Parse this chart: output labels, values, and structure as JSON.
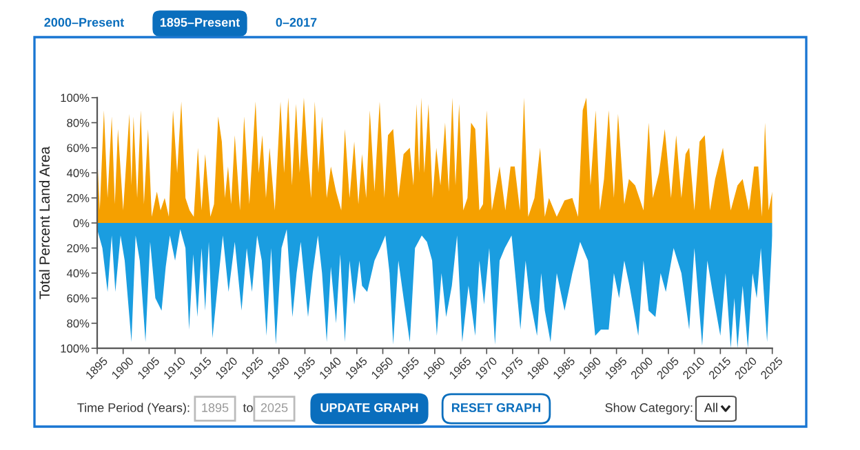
{
  "chart_data": {
    "type": "area",
    "ylabel": "Total Percent Land Area",
    "xlim": [
      1895,
      2025
    ],
    "xticks": [
      1895,
      1900,
      1905,
      1910,
      1915,
      1920,
      1925,
      1930,
      1935,
      1940,
      1945,
      1950,
      1955,
      1960,
      1965,
      1970,
      1975,
      1980,
      1985,
      1990,
      1995,
      2000,
      2005,
      2010,
      2015,
      2020,
      2025
    ],
    "ylim": [
      -100,
      100
    ],
    "yticks": [
      {
        "value": -100,
        "label": "100%"
      },
      {
        "value": -80,
        "label": "80%"
      },
      {
        "value": -60,
        "label": "60%"
      },
      {
        "value": -40,
        "label": "40%"
      },
      {
        "value": -20,
        "label": "20%"
      },
      {
        "value": 0,
        "label": "0%"
      },
      {
        "value": 20,
        "label": "20%"
      },
      {
        "value": 40,
        "label": "40%"
      },
      {
        "value": 60,
        "label": "60%"
      },
      {
        "value": 80,
        "label": "80%"
      },
      {
        "value": 100,
        "label": "100%"
      }
    ],
    "grid": false,
    "legend": false,
    "series": [
      {
        "color": "#f5a000",
        "x": [
          1895,
          1895.5,
          1896.3,
          1897,
          1897.8,
          1898.4,
          1899,
          1900,
          1901.2,
          1901.6,
          1902,
          1902.7,
          1903.4,
          1904,
          1904.8,
          1905.5,
          1906.5,
          1907.2,
          1908,
          1908.8,
          1909.6,
          1910.4,
          1911.2,
          1912,
          1912.8,
          1913.6,
          1914.4,
          1915.1,
          1915.8,
          1916.8,
          1917.5,
          1918.3,
          1919,
          1919.6,
          1920.2,
          1920.8,
          1921.5,
          1922.5,
          1923.3,
          1924.3,
          1925.5,
          1926.1,
          1926.8,
          1927.5,
          1928.2,
          1929.2,
          1930.3,
          1931,
          1931.8,
          1932.5,
          1933.3,
          1934,
          1934.8,
          1935.5,
          1936.2,
          1936.9,
          1937.6,
          1938.3,
          1939.2,
          1940,
          1941,
          1942,
          1942.7,
          1943.6,
          1944.5,
          1945.3,
          1946,
          1946.8,
          1947.5,
          1948.4,
          1949.4,
          1950.3,
          1951,
          1952,
          1953,
          1954,
          1955.2,
          1955.9,
          1956.5,
          1957,
          1957.4,
          1958,
          1958.8,
          1959.6,
          1960.3,
          1961.1,
          1962,
          1962.7,
          1963.4,
          1964,
          1964.7,
          1965.5,
          1966.3,
          1967,
          1967.8,
          1968.6,
          1969.3,
          1970,
          1971,
          1972.5,
          1973.6,
          1974.6,
          1975.4,
          1976.4,
          1977.2,
          1978,
          1979.2,
          1980.3,
          1981.2,
          1982,
          1983.5,
          1985,
          1986.5,
          1987.6,
          1988.5,
          1989.2,
          1990,
          1991,
          1991.8,
          1992.6,
          1993.5,
          1994.5,
          1995.3,
          1996.5,
          1997.4,
          1998.6,
          2000.2,
          2001.2,
          2002,
          2003.2,
          2004.3,
          2005.5,
          2006.5,
          2007.5,
          2008.3,
          2009,
          2010,
          2011,
          2012,
          2013,
          2014,
          2015.5,
          2017,
          2018.3,
          2019.3,
          2020.5,
          2021.5,
          2022.3,
          2023,
          2023.6,
          2024.3,
          2025
        ],
        "values": [
          55,
          10,
          90,
          20,
          85,
          15,
          75,
          10,
          87,
          30,
          85,
          20,
          90,
          15,
          75,
          5,
          25,
          10,
          20,
          5,
          90,
          40,
          97,
          20,
          10,
          5,
          60,
          10,
          55,
          5,
          15,
          85,
          65,
          20,
          45,
          15,
          70,
          10,
          85,
          15,
          97,
          40,
          70,
          20,
          60,
          10,
          97,
          40,
          100,
          30,
          95,
          40,
          100,
          55,
          20,
          97,
          40,
          85,
          20,
          45,
          25,
          10,
          75,
          20,
          65,
          15,
          55,
          20,
          90,
          25,
          97,
          20,
          70,
          75,
          20,
          55,
          60,
          30,
          95,
          40,
          100,
          40,
          95,
          20,
          60,
          30,
          80,
          25,
          100,
          30,
          95,
          10,
          20,
          80,
          75,
          10,
          15,
          90,
          10,
          45,
          10,
          45,
          45,
          10,
          100,
          5,
          20,
          60,
          5,
          20,
          5,
          18,
          20,
          5,
          90,
          100,
          30,
          90,
          10,
          35,
          90,
          20,
          87,
          15,
          35,
          30,
          10,
          80,
          20,
          40,
          75,
          20,
          70,
          20,
          55,
          60,
          10,
          65,
          70,
          10,
          35,
          60,
          10,
          30,
          35,
          10,
          45,
          45,
          5,
          80,
          10,
          25
        ]
      },
      {
        "color": "#1a9de0",
        "x": [
          1895,
          1896,
          1897,
          1897.8,
          1898.5,
          1899.5,
          1900.3,
          1901.6,
          1902.4,
          1903.2,
          1904.3,
          1905.2,
          1906.2,
          1907.4,
          1908.2,
          1909,
          1910,
          1911,
          1912,
          1912.7,
          1913.5,
          1914.3,
          1915.1,
          1915.8,
          1916.5,
          1917.2,
          1918.2,
          1919.2,
          1920.3,
          1921.5,
          1922.8,
          1923.8,
          1924.8,
          1925.8,
          1926.7,
          1927.6,
          1928.5,
          1929.4,
          1930.5,
          1931.5,
          1932.6,
          1933.4,
          1934.2,
          1935.6,
          1936.5,
          1937.5,
          1938.3,
          1939.2,
          1940,
          1941,
          1941.8,
          1942.7,
          1943.6,
          1944.5,
          1945.5,
          1946,
          1947,
          1948.4,
          1949.5,
          1950.5,
          1951.3,
          1952,
          1953,
          1954,
          1955.2,
          1956.2,
          1957.5,
          1958.5,
          1959.5,
          1960.4,
          1961.3,
          1962.2,
          1963.3,
          1964.3,
          1965.3,
          1966.5,
          1967.8,
          1968.6,
          1969.5,
          1970.5,
          1971.6,
          1972.5,
          1973.5,
          1974.8,
          1976.5,
          1977.5,
          1978.3,
          1979.7,
          1980.5,
          1981.2,
          1982.3,
          1983.5,
          1985,
          1986.5,
          1988,
          1989.5,
          1990.9,
          1992,
          1993.5,
          1994.5,
          1995.5,
          1996.5,
          1997.5,
          1999.2,
          2000.2,
          2001.2,
          2002.5,
          2003.5,
          2004.5,
          2006,
          2007.5,
          2009,
          2010,
          2011.5,
          2012.5,
          2013.5,
          2015,
          2016,
          2017,
          2017.7,
          2018.3,
          2019.3,
          2020.3,
          2021.2,
          2022,
          2022.8,
          2024,
          2025
        ],
        "values": [
          -5,
          -20,
          -55,
          -10,
          -55,
          -10,
          -30,
          -95,
          -10,
          -30,
          -95,
          -15,
          -60,
          -70,
          -35,
          -10,
          -30,
          -5,
          -20,
          -85,
          -25,
          -75,
          -20,
          -70,
          -15,
          -92,
          -50,
          -10,
          -55,
          -15,
          -70,
          -20,
          -55,
          -10,
          -30,
          -90,
          -20,
          -97,
          -20,
          -5,
          -75,
          -40,
          -15,
          -75,
          -40,
          -10,
          -40,
          -95,
          -35,
          -80,
          -25,
          -95,
          -30,
          -65,
          -30,
          -50,
          -55,
          -30,
          -20,
          -10,
          -40,
          -97,
          -30,
          -60,
          -95,
          -20,
          -10,
          -15,
          -30,
          -90,
          -40,
          -75,
          -50,
          -10,
          -95,
          -50,
          -90,
          -30,
          -65,
          -20,
          -97,
          -30,
          -20,
          -10,
          -85,
          -30,
          -60,
          -90,
          -40,
          -70,
          -95,
          -40,
          -70,
          -40,
          -15,
          -30,
          -90,
          -85,
          -85,
          -40,
          -60,
          -30,
          -50,
          -90,
          -30,
          -70,
          -75,
          -40,
          -55,
          -20,
          -40,
          -85,
          -20,
          -98,
          -30,
          -55,
          -90,
          -40,
          -100,
          -60,
          -100,
          -50,
          -100,
          -40,
          -60,
          -20,
          -95,
          -10
        ]
      }
    ],
    "annotations": [
      "2000–Present",
      "1895–Present",
      "0–2017",
      "Time Period (Years):",
      "1895",
      "to",
      "2025",
      "UPDATE GRAPH",
      "RESET GRAPH",
      "Show Category:",
      "All"
    ]
  }
}
